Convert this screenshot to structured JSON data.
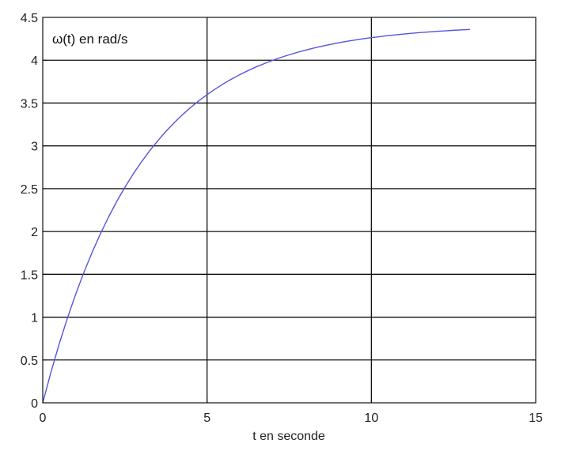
{
  "chart_data": {
    "type": "line",
    "title": "",
    "xlabel": "t en seconde",
    "ylabel": "",
    "annotation": "ω(t) en rad/s",
    "xlim": [
      0,
      15
    ],
    "ylim": [
      0,
      4.5
    ],
    "xticks": [
      0,
      5,
      10,
      15
    ],
    "xtick_labels": [
      "0",
      "5",
      "10",
      "15"
    ],
    "yticks": [
      0,
      0.5,
      1,
      1.5,
      2,
      2.5,
      3,
      3.5,
      4,
      4.5
    ],
    "ytick_labels": [
      "0",
      "0.5",
      "1",
      "1.5",
      "2",
      "2.5",
      "3",
      "3.5",
      "4",
      "4.5"
    ],
    "grid": true,
    "series": [
      {
        "color": "#5555dd",
        "x": [
          0,
          0.25,
          0.5,
          0.75,
          1,
          1.25,
          1.5,
          1.75,
          2,
          2.25,
          2.5,
          2.75,
          3,
          3.25,
          3.5,
          3.75,
          4,
          4.25,
          4.5,
          4.75,
          5,
          5.25,
          5.5,
          5.75,
          6,
          6.25,
          6.5,
          6.75,
          7,
          7.25,
          7.5,
          7.75,
          8,
          8.25,
          8.5,
          8.75,
          9,
          9.25,
          9.5,
          9.75,
          10,
          10.25,
          10.5,
          10.75,
          11,
          11.25,
          11.5,
          11.75,
          12,
          12.25,
          12.5,
          12.75,
          13
        ],
        "values": [
          0,
          0.357,
          0.686,
          0.988,
          1.265,
          1.52,
          1.754,
          1.969,
          2.167,
          2.349,
          2.516,
          2.67,
          2.811,
          2.941,
          3.06,
          3.17,
          3.27,
          3.363,
          3.448,
          3.526,
          3.598,
          3.664,
          3.725,
          3.781,
          3.832,
          3.879,
          3.923,
          3.962,
          3.999,
          4.033,
          4.063,
          4.092,
          4.118,
          4.142,
          4.164,
          4.184,
          4.203,
          4.22,
          4.235,
          4.25,
          4.263,
          4.275,
          4.287,
          4.297,
          4.306,
          4.315,
          4.323,
          4.33,
          4.337,
          4.343,
          4.349,
          4.354,
          4.359
        ]
      }
    ]
  },
  "colors": {
    "grid": "#111111",
    "frame": "#111111",
    "line": "#5555dd"
  }
}
